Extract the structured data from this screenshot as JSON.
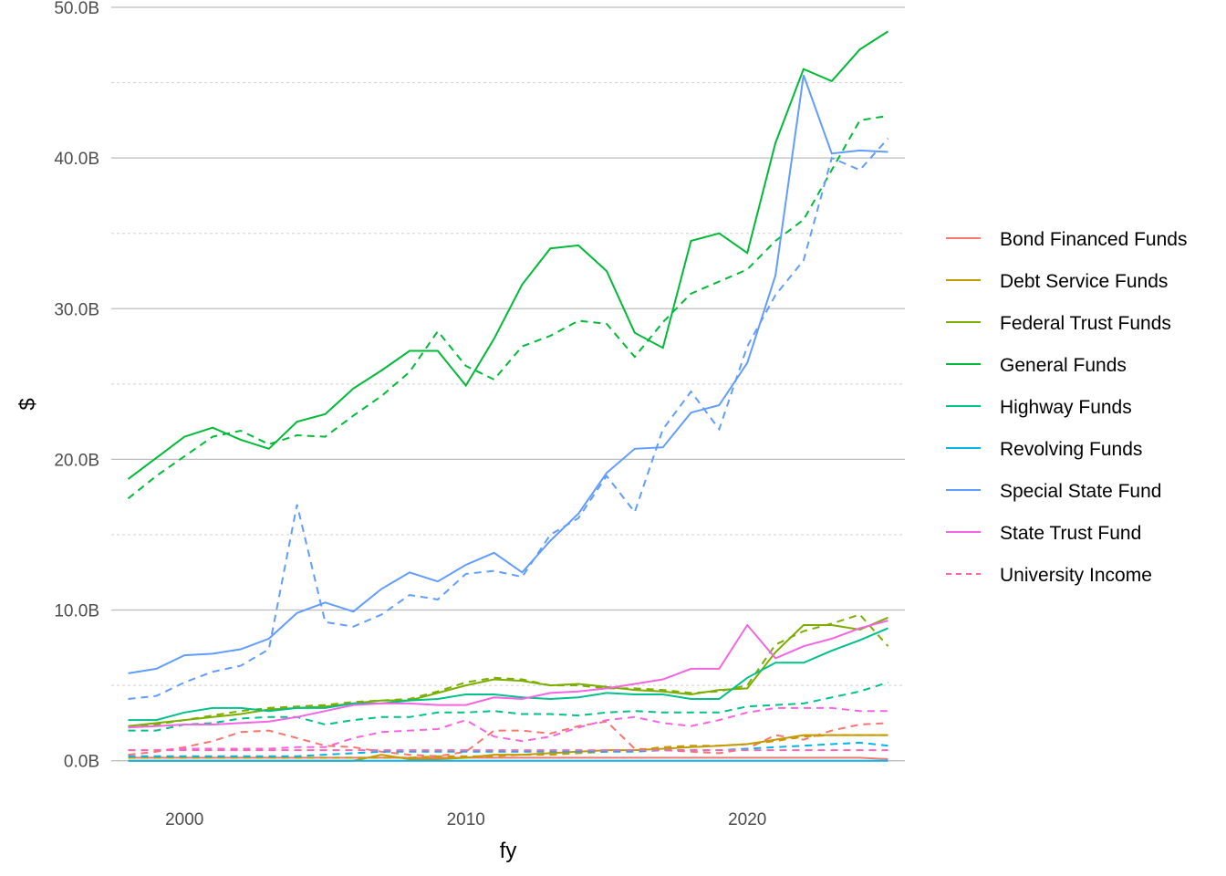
{
  "chart_data": {
    "type": "line",
    "xlabel": "fy",
    "ylabel": "$",
    "xlim": [
      1997.4,
      2025.6
    ],
    "ylim": [
      -2.2,
      50.0
    ],
    "x_ticks": [
      2000,
      2010,
      2020
    ],
    "y_ticks": [
      {
        "value": 0,
        "label": "0.0B"
      },
      {
        "value": 10,
        "label": "10.0B"
      },
      {
        "value": 20,
        "label": "20.0B"
      },
      {
        "value": 30,
        "label": "30.0B"
      },
      {
        "value": 40,
        "label": "40.0B"
      },
      {
        "value": 50,
        "label": "50.0B"
      }
    ],
    "y_minor_ticks": [
      5,
      15,
      25,
      35,
      45
    ],
    "grid": true,
    "legend_position": "right",
    "unit": "billions of dollars",
    "x": [
      1998,
      1999,
      2000,
      2001,
      2002,
      2003,
      2004,
      2005,
      2006,
      2007,
      2008,
      2009,
      2010,
      2011,
      2012,
      2013,
      2014,
      2015,
      2016,
      2017,
      2018,
      2019,
      2020,
      2021,
      2022,
      2023,
      2024,
      2025
    ],
    "series": [
      {
        "name": "Bond Financed Funds",
        "color": "#F8766D",
        "solid": [
          0.2,
          0.2,
          0.2,
          0.2,
          0.2,
          0.2,
          0.2,
          0.2,
          0.2,
          0.2,
          0.2,
          0.2,
          0.2,
          0.2,
          0.2,
          0.2,
          0.2,
          0.2,
          0.2,
          0.2,
          0.2,
          0.2,
          0.2,
          0.2,
          0.2,
          0.2,
          0.2,
          0.1
        ],
        "dashed": [
          0.4,
          0.6,
          0.9,
          1.3,
          1.9,
          2.0,
          1.5,
          1.0,
          0.9,
          0.6,
          0.4,
          0.3,
          0.6,
          2.0,
          2.0,
          1.8,
          2.3,
          2.6,
          0.8,
          0.7,
          0.6,
          0.5,
          0.8,
          1.7,
          1.4,
          2.0,
          2.4,
          2.5
        ]
      },
      {
        "name": "Debt Service Funds",
        "color": "#C49A00",
        "solid": [
          0.0,
          0.0,
          0.0,
          0.0,
          0.0,
          0.0,
          0.0,
          0.0,
          0.0,
          0.4,
          0.1,
          0.1,
          0.2,
          0.4,
          0.4,
          0.5,
          0.6,
          0.7,
          0.7,
          0.8,
          0.9,
          1.0,
          1.1,
          1.4,
          1.7,
          1.7,
          1.7,
          1.7
        ],
        "dashed": [
          0.2,
          0.2,
          0.2,
          0.2,
          0.2,
          0.2,
          0.2,
          0.2,
          0.2,
          0.2,
          0.2,
          0.3,
          0.3,
          0.3,
          0.4,
          0.4,
          0.5,
          0.6,
          0.7,
          0.9,
          1.0,
          1.0,
          1.1,
          1.3,
          1.6,
          1.7,
          1.7,
          1.7
        ]
      },
      {
        "name": "Federal Trust Funds",
        "color": "#7CAE00",
        "solid": [
          2.3,
          2.5,
          2.7,
          2.9,
          3.1,
          3.4,
          3.5,
          3.6,
          3.8,
          4.0,
          4.0,
          4.5,
          5.0,
          5.4,
          5.3,
          5.0,
          5.1,
          4.9,
          4.7,
          4.6,
          4.4,
          4.7,
          4.8,
          7.2,
          9.0,
          9.0,
          8.7,
          9.5
        ],
        "dashed": [
          2.2,
          2.4,
          2.7,
          3.0,
          3.3,
          3.5,
          3.6,
          3.7,
          3.9,
          4.0,
          4.1,
          4.6,
          5.2,
          5.5,
          5.4,
          5.0,
          5.0,
          4.8,
          4.8,
          4.7,
          4.5,
          4.6,
          5.0,
          7.7,
          8.6,
          9.1,
          9.7,
          7.6
        ]
      },
      {
        "name": "General Funds",
        "color": "#00BA38",
        "solid": [
          18.7,
          20.1,
          21.5,
          22.1,
          21.3,
          20.7,
          22.5,
          23.0,
          24.7,
          25.9,
          27.2,
          27.2,
          24.9,
          28.0,
          31.6,
          34.0,
          34.2,
          32.5,
          28.4,
          27.4,
          34.5,
          35.0,
          33.7,
          41.0,
          45.9,
          45.1,
          47.2,
          48.4
        ],
        "dashed": [
          17.4,
          18.9,
          20.2,
          21.5,
          21.9,
          21.0,
          21.6,
          21.5,
          22.9,
          24.2,
          25.8,
          28.5,
          26.2,
          25.3,
          27.5,
          28.2,
          29.2,
          29.0,
          26.8,
          29.1,
          31.0,
          31.8,
          32.6,
          34.5,
          35.9,
          39.2,
          42.5,
          42.8
        ]
      },
      {
        "name": "Highway Funds",
        "color": "#00C08B",
        "solid": [
          2.7,
          2.7,
          3.2,
          3.5,
          3.5,
          3.3,
          3.5,
          3.5,
          3.8,
          3.8,
          4.0,
          4.1,
          4.4,
          4.4,
          4.2,
          4.1,
          4.2,
          4.5,
          4.4,
          4.4,
          4.1,
          4.1,
          5.5,
          6.5,
          6.5,
          7.3,
          8.0,
          8.8
        ],
        "dashed": [
          2.0,
          2.0,
          2.4,
          2.5,
          2.8,
          2.9,
          2.9,
          2.4,
          2.7,
          2.9,
          2.9,
          3.2,
          3.2,
          3.3,
          3.1,
          3.1,
          3.0,
          3.2,
          3.3,
          3.2,
          3.2,
          3.2,
          3.6,
          3.7,
          3.8,
          4.2,
          4.6,
          5.2
        ]
      },
      {
        "name": "Revolving Funds",
        "color": "#00B4EF",
        "solid": [
          0.0,
          0.0,
          0.0,
          0.0,
          0.0,
          0.0,
          0.0,
          0.0,
          0.0,
          0.0,
          0.0,
          0.0,
          0.0,
          0.0,
          0.0,
          0.0,
          0.0,
          0.0,
          0.0,
          0.0,
          0.0,
          0.0,
          0.0,
          0.0,
          0.0,
          0.0,
          0.0,
          0.0
        ],
        "dashed": [
          0.3,
          0.3,
          0.3,
          0.3,
          0.3,
          0.3,
          0.3,
          0.4,
          0.5,
          0.6,
          0.6,
          0.6,
          0.6,
          0.6,
          0.6,
          0.6,
          0.6,
          0.6,
          0.6,
          0.7,
          0.7,
          0.7,
          0.8,
          0.9,
          1.0,
          1.1,
          1.2,
          1.0
        ]
      },
      {
        "name": "Special State Fund",
        "color": "#619CFF",
        "solid": [
          5.8,
          6.1,
          7.0,
          7.1,
          7.4,
          8.1,
          9.8,
          10.5,
          9.9,
          11.4,
          12.5,
          11.9,
          13.0,
          13.8,
          12.5,
          14.6,
          16.4,
          19.1,
          20.7,
          20.8,
          23.1,
          23.6,
          26.4,
          32.2,
          45.5,
          40.3,
          40.5,
          40.4
        ],
        "dashed": [
          4.1,
          4.3,
          5.2,
          5.9,
          6.3,
          7.4,
          17.0,
          9.2,
          8.9,
          9.7,
          11.0,
          10.7,
          12.4,
          12.6,
          12.2,
          15.0,
          16.1,
          18.9,
          16.5,
          22.0,
          24.5,
          22.0,
          27.5,
          30.9,
          33.2,
          40.0,
          39.2,
          41.3
        ]
      },
      {
        "name": "State Trust Fund",
        "color": "#F564E3",
        "solid": [
          2.2,
          2.3,
          2.4,
          2.4,
          2.5,
          2.6,
          2.9,
          3.3,
          3.7,
          3.8,
          3.8,
          3.7,
          3.7,
          4.2,
          4.1,
          4.5,
          4.6,
          4.8,
          5.1,
          5.4,
          6.1,
          6.1,
          9.0,
          6.8,
          7.6,
          8.1,
          8.8,
          9.3
        ],
        "dashed": [
          0.7,
          0.7,
          0.8,
          0.8,
          0.8,
          0.8,
          0.9,
          0.9,
          1.5,
          1.9,
          2.0,
          2.1,
          2.7,
          1.6,
          1.3,
          1.6,
          2.2,
          2.7,
          2.9,
          2.5,
          2.3,
          2.7,
          3.2,
          3.5,
          3.5,
          3.5,
          3.3,
          3.3
        ]
      },
      {
        "name": "University Income",
        "color": "#FF64B0",
        "solid": [],
        "dashed": [
          0.7,
          0.7,
          0.7,
          0.7,
          0.7,
          0.7,
          0.7,
          0.7,
          0.7,
          0.7,
          0.7,
          0.7,
          0.7,
          0.7,
          0.7,
          0.7,
          0.7,
          0.7,
          0.7,
          0.7,
          0.7,
          0.7,
          0.7,
          0.7,
          0.7,
          0.7,
          0.7,
          0.7
        ]
      }
    ],
    "legend": [
      {
        "label": "Bond Financed Funds",
        "color": "#F8766D",
        "dash": false
      },
      {
        "label": "Debt Service Funds",
        "color": "#C49A00",
        "dash": false
      },
      {
        "label": "Federal Trust Funds",
        "color": "#7CAE00",
        "dash": false
      },
      {
        "label": "General Funds",
        "color": "#00BA38",
        "dash": false
      },
      {
        "label": "Highway Funds",
        "color": "#00C08B",
        "dash": false
      },
      {
        "label": "Revolving Funds",
        "color": "#00B4EF",
        "dash": false
      },
      {
        "label": "Special State Fund",
        "color": "#619CFF",
        "dash": false
      },
      {
        "label": "State Trust Fund",
        "color": "#F564E3",
        "dash": false
      },
      {
        "label": "University Income",
        "color": "#FF64B0",
        "dash": true
      }
    ]
  }
}
